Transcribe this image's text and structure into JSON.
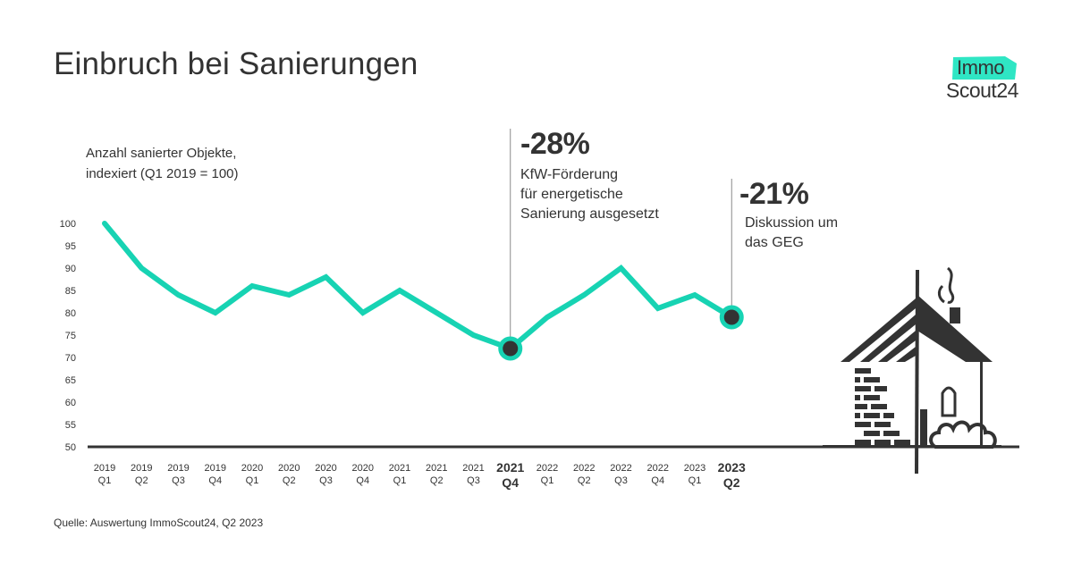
{
  "title": "Einbruch bei Sanierungen",
  "logo": {
    "line1": "Immo",
    "line2": "Scout24",
    "accent_color": "#2fe6c4"
  },
  "subtitle": {
    "line1": "Anzahl sanierter Objekte,",
    "line2": "indexiert (Q1 2019 = 100)"
  },
  "annotations": [
    {
      "percent": "-28%",
      "lines": [
        "KfW-Förderung",
        "für energetische",
        "Sanierung ausgesetzt"
      ],
      "point_index": 11
    },
    {
      "percent": "-21%",
      "lines": [
        "Diskussion um",
        "das GEG"
      ],
      "point_index": 17
    }
  ],
  "source": "Quelle: Auswertung ImmoScout24, Q2 2023",
  "colors": {
    "line": "#17d3b3",
    "marker_fill": "#333333",
    "text": "#333333",
    "axis": "#333333",
    "leader": "#8a8a8a"
  },
  "chart_data": {
    "type": "line",
    "title": "Einbruch bei Sanierungen",
    "ylabel": "Anzahl sanierter Objekte, indexiert (Q1 2019 = 100)",
    "xlabel": "",
    "ylim": [
      50,
      100
    ],
    "yticks": [
      100,
      95,
      90,
      85,
      80,
      75,
      70,
      65,
      60,
      55,
      50
    ],
    "grid": false,
    "legend": "none",
    "categories": [
      {
        "year": "2019",
        "quarter": "Q1"
      },
      {
        "year": "2019",
        "quarter": "Q2"
      },
      {
        "year": "2019",
        "quarter": "Q3"
      },
      {
        "year": "2019",
        "quarter": "Q4"
      },
      {
        "year": "2020",
        "quarter": "Q1"
      },
      {
        "year": "2020",
        "quarter": "Q2"
      },
      {
        "year": "2020",
        "quarter": "Q3"
      },
      {
        "year": "2020",
        "quarter": "Q4"
      },
      {
        "year": "2021",
        "quarter": "Q1"
      },
      {
        "year": "2021",
        "quarter": "Q2"
      },
      {
        "year": "2021",
        "quarter": "Q3"
      },
      {
        "year": "2021",
        "quarter": "Q4",
        "highlight": true
      },
      {
        "year": "2022",
        "quarter": "Q1"
      },
      {
        "year": "2022",
        "quarter": "Q2"
      },
      {
        "year": "2022",
        "quarter": "Q3"
      },
      {
        "year": "2022",
        "quarter": "Q4"
      },
      {
        "year": "2023",
        "quarter": "Q1"
      },
      {
        "year": "2023",
        "quarter": "Q2",
        "highlight": true
      }
    ],
    "series": [
      {
        "name": "Anzahl sanierter Objekte (Index)",
        "values": [
          100,
          90,
          84,
          80,
          86,
          84,
          88,
          80,
          85,
          80,
          75,
          72,
          79,
          84,
          90,
          81,
          84,
          79
        ]
      }
    ],
    "highlighted_points": [
      11,
      17
    ]
  }
}
